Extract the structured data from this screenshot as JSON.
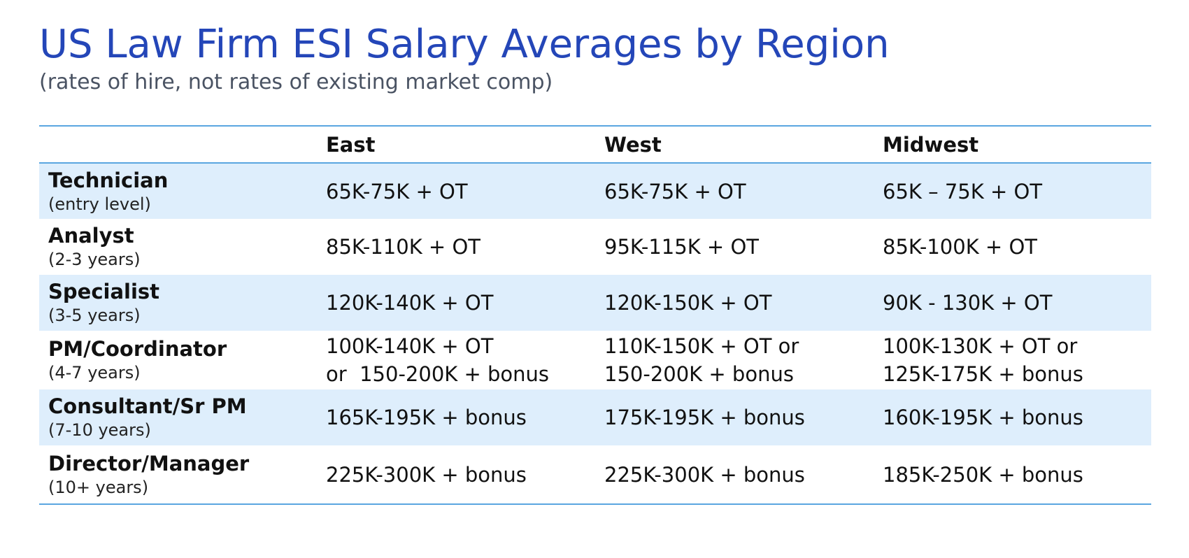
{
  "title": "US Law Firm ESI Salary Averages by Region",
  "subtitle": "(rates of hire, not rates of existing market comp)",
  "table": {
    "columns": [
      "",
      "East",
      "West",
      "Midwest"
    ],
    "rows": [
      {
        "role": "Technician",
        "years": "(entry level)",
        "east": [
          "65K-75K + OT"
        ],
        "west": [
          "65K-75K + OT"
        ],
        "midwest": [
          "65K – 75K + OT"
        ]
      },
      {
        "role": "Analyst",
        "years": "(2-3 years)",
        "east": [
          "85K-110K + OT"
        ],
        "west": [
          "95K-115K + OT"
        ],
        "midwest": [
          "85K-100K + OT"
        ]
      },
      {
        "role": "Specialist",
        "years": "(3-5 years)",
        "east": [
          "120K-140K + OT"
        ],
        "west": [
          "120K-150K + OT"
        ],
        "midwest": [
          "90K - 130K + OT"
        ]
      },
      {
        "role": "PM/Coordinator",
        "years": "(4-7 years)",
        "east": [
          "100K-140K + OT",
          "or  150-200K + bonus"
        ],
        "west": [
          "110K-150K + OT or",
          "150-200K + bonus"
        ],
        "midwest": [
          "100K-130K + OT or",
          "125K-175K + bonus"
        ]
      },
      {
        "role": "Consultant/Sr PM",
        "years": "(7-10 years)",
        "east": [
          "165K-195K + bonus"
        ],
        "west": [
          "175K-195K + bonus"
        ],
        "midwest": [
          "160K-195K + bonus"
        ]
      },
      {
        "role": "Director/Manager",
        "years": "(10+ years)",
        "east": [
          "225K-300K + bonus"
        ],
        "west": [
          "225K-300K + bonus"
        ],
        "midwest": [
          "185K-250K + bonus"
        ]
      }
    ]
  },
  "colors": {
    "title": "#2446b8",
    "rule": "#5aa6e0",
    "band": "#deeefc"
  }
}
